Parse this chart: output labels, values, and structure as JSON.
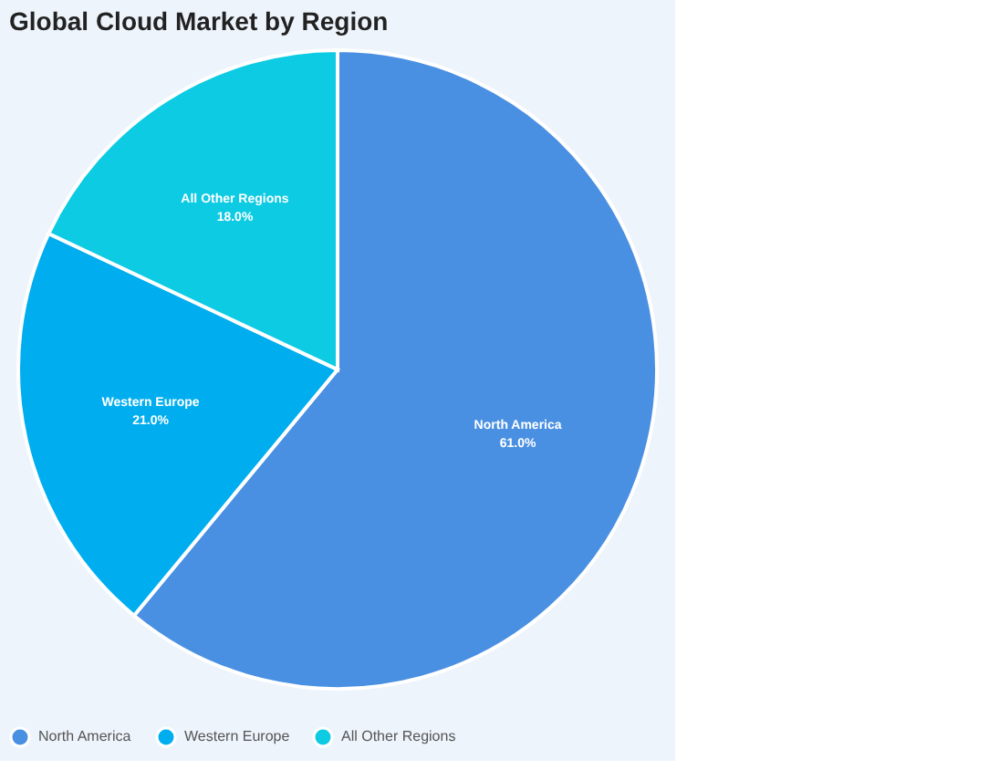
{
  "chart_data": {
    "type": "pie",
    "title": "Global Cloud Market by Region",
    "categories": [
      "North America",
      "Western Europe",
      "All Other Regions"
    ],
    "values": [
      61.0,
      21.0,
      18.0
    ],
    "value_labels": [
      "61.0%",
      "21.0%",
      "18.0%"
    ],
    "colors": [
      "#4a90e2",
      "#00aeef",
      "#0ccbe3"
    ],
    "legend": "bottom"
  }
}
